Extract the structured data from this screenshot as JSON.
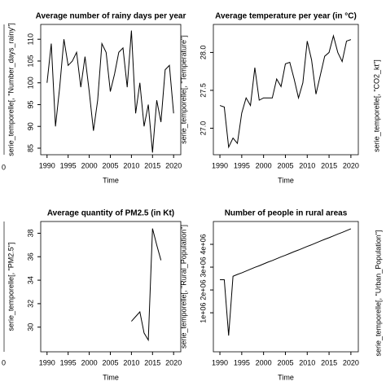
{
  "chart_data": [
    {
      "type": "line",
      "title": "Average number of rainy days per year",
      "xlabel": "Time",
      "ylabel": "serie_temporelle[, \"Number_days_rainy\"]",
      "x": [
        1990,
        1991,
        1992,
        1993,
        1994,
        1995,
        1996,
        1997,
        1998,
        1999,
        2000,
        2001,
        2002,
        2003,
        2004,
        2005,
        2006,
        2007,
        2008,
        2009,
        2010,
        2011,
        2012,
        2013,
        2014,
        2015,
        2016,
        2017,
        2018,
        2019,
        2020
      ],
      "values": [
        100,
        109,
        90,
        99,
        110,
        104,
        105,
        107,
        99,
        106,
        98,
        89,
        96,
        109,
        107,
        98,
        102,
        107,
        108,
        99,
        112,
        93,
        100,
        90,
        95,
        84,
        96,
        91,
        103,
        104,
        93
      ],
      "color": "#000000",
      "xlim": [
        1988.5,
        2021.7
      ],
      "ylim": [
        83.5,
        113.4
      ],
      "xticks": [
        1990,
        1995,
        2000,
        2005,
        2010,
        2015,
        2020
      ],
      "yticks": [
        85,
        90,
        95,
        100,
        105,
        110
      ]
    },
    {
      "type": "line",
      "title": "Average temperature per year (in °C)",
      "xlabel": "Time",
      "ylabel": "serie_temporelle[, \"Temperature\"]",
      "x": [
        1990,
        1991,
        1992,
        1993,
        1994,
        1995,
        1996,
        1997,
        1998,
        1999,
        2000,
        2001,
        2002,
        2003,
        2004,
        2005,
        2006,
        2007,
        2008,
        2009,
        2010,
        2011,
        2012,
        2013,
        2014,
        2015,
        2016,
        2017,
        2018,
        2019,
        2020
      ],
      "values": [
        27.3,
        27.28,
        26.75,
        26.87,
        26.8,
        27.2,
        27.4,
        27.3,
        27.8,
        27.37,
        27.4,
        27.4,
        27.4,
        27.65,
        27.55,
        27.85,
        27.87,
        27.65,
        27.4,
        27.6,
        28.15,
        27.9,
        27.45,
        27.7,
        27.95,
        28.0,
        28.22,
        28.0,
        27.88,
        28.15,
        28.17
      ],
      "color": "#000000",
      "xlim": [
        1988.5,
        2021.7
      ],
      "ylim": [
        26.65,
        28.37
      ],
      "xticks": [
        1990,
        1995,
        2000,
        2005,
        2010,
        2015,
        2020
      ],
      "yticks": [
        {
          "value": 27,
          "label": "27.0"
        },
        27.5,
        {
          "value": 28,
          "label": "28.0"
        }
      ]
    },
    {
      "type": "line",
      "title": "Average quantity of PM2.5 (in Kt)",
      "xlabel": "Time",
      "ylabel": "serie_temporelle[, \"PM2.5\"]",
      "x": [
        2010,
        2011,
        2012,
        2013,
        2014,
        2015,
        2016,
        2017
      ],
      "values": [
        30.5,
        30.9,
        31.3,
        29.5,
        28.9,
        38.4,
        37.0,
        35.7
      ],
      "color": "#000000",
      "xlim": [
        1988.5,
        2021.7
      ],
      "ylim": [
        27.9,
        39.0
      ],
      "xticks": [
        1990,
        1995,
        2000,
        2005,
        2010,
        2015,
        2020
      ],
      "yticks": [
        30,
        32,
        34,
        36,
        38
      ]
    },
    {
      "type": "line",
      "title": "Number of people in rural areas",
      "xlabel": "Time",
      "ylabel": "serie_temporelle[, \"Rural_Population\"]",
      "x": [
        1990,
        1991,
        1992,
        1993,
        1994,
        1995,
        1996,
        1997,
        1998,
        1999,
        2000,
        2001,
        2002,
        2003,
        2004,
        2005,
        2006,
        2007,
        2008,
        2009,
        2010,
        2011,
        2012,
        2013,
        2014,
        2015,
        2016,
        2017,
        2018,
        2019,
        2020
      ],
      "values": [
        2450000,
        2450000,
        0,
        2600000,
        2680000,
        2750000,
        2830000,
        2910000,
        2990000,
        3060000,
        3140000,
        3220000,
        3290000,
        3370000,
        3450000,
        3520000,
        3600000,
        3680000,
        3750000,
        3830000,
        3910000,
        3980000,
        4060000,
        4140000,
        4220000,
        4290000,
        4370000,
        4450000,
        4520000,
        4600000,
        4680000
      ],
      "color": "#000000",
      "xlim": [
        1988.5,
        2021.7
      ],
      "ylim": [
        -710000,
        5000000
      ],
      "xticks": [
        1990,
        1995,
        2000,
        2005,
        2010,
        2015,
        2020
      ],
      "yticks": [
        {
          "value": 1000000,
          "label": "1e+06"
        },
        {
          "value": 2000000,
          "label": "2e+06"
        },
        {
          "value": 3000000,
          "label": "3e+06"
        },
        {
          "value": 4000000,
          "label": "4e+06"
        }
      ]
    }
  ],
  "fragments": [
    "serie_temporelle[, \"CO2_kt\"]",
    "serie_temporelle[, \"Urban_Population\"]",
    "0",
    "0"
  ]
}
